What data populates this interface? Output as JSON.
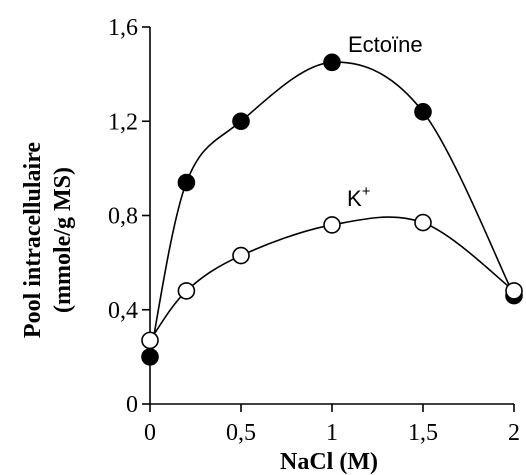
{
  "chart_data": {
    "type": "scatter",
    "xlabel": "NaCl (M)",
    "ylabel_line1": "Pool intracellulaire",
    "ylabel_line2": "(mmole/g MS)",
    "xlim": [
      0,
      2
    ],
    "ylim": [
      0,
      1.6
    ],
    "x_ticks": [
      {
        "value": 0,
        "label": "0"
      },
      {
        "value": 0.5,
        "label": "0,5"
      },
      {
        "value": 1,
        "label": "1"
      },
      {
        "value": 1.5,
        "label": "1,5"
      },
      {
        "value": 2,
        "label": "2"
      }
    ],
    "y_ticks": [
      {
        "value": 0,
        "label": "0"
      },
      {
        "value": 0.4,
        "label": "0,4"
      },
      {
        "value": 0.8,
        "label": "0,8"
      },
      {
        "value": 1.2,
        "label": "1,2"
      },
      {
        "value": 1.6,
        "label": "1,6"
      }
    ],
    "grid": false,
    "series": [
      {
        "name": "Ectoïne",
        "marker": "filled-circle",
        "x": [
          0,
          0.2,
          0.5,
          1,
          1.5,
          2
        ],
        "y": [
          0.2,
          0.94,
          1.2,
          1.45,
          1.24,
          0.46
        ]
      },
      {
        "name": "K+",
        "label_base": "K",
        "label_sup": "+",
        "marker": "open-circle",
        "x": [
          0,
          0.2,
          0.5,
          1,
          1.5,
          2
        ],
        "y": [
          0.27,
          0.48,
          0.63,
          0.76,
          0.77,
          0.48
        ]
      }
    ],
    "colors": {
      "ink": "#000000",
      "background": "#ffffff"
    }
  }
}
